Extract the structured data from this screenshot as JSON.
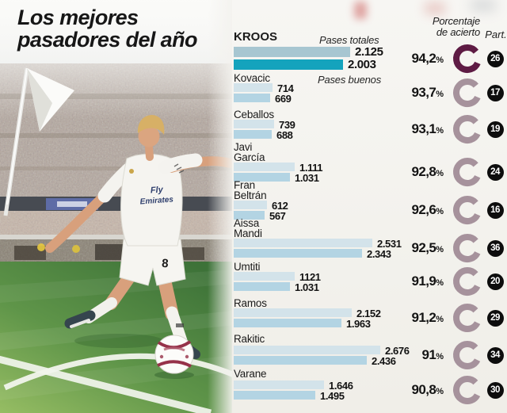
{
  "title": {
    "line1": "Los mejores",
    "line2": "pasadores del año"
  },
  "headers": {
    "accuracy_line1": "Porcentaje",
    "accuracy_line2": "de acierto",
    "participation": "Part."
  },
  "legend": {
    "total": "Pases totales",
    "good": "Pases buenos"
  },
  "photo": {
    "subject": "player-kicking-ball-in-stadium",
    "jersey_line1": "Fly",
    "jersey_line2": "Emirates",
    "shorts_number": "8"
  },
  "colors": {
    "bar_total_hero": "#a7c6d1",
    "bar_good_hero": "#14a3bd",
    "bar_total": "#d3e3ea",
    "bar_good": "#b3d4e3",
    "ring_hero": "#5e1b44",
    "ring": "#a6929c",
    "badge_bg": "#0d0d0d",
    "badge_text": "#ffffff"
  },
  "chart_data": {
    "type": "bar",
    "orientation": "horizontal",
    "title": "Los mejores pasadores del año",
    "series_labels": [
      "Pases totales",
      "Pases buenos"
    ],
    "value_axis_max": 2676,
    "grid": false,
    "legend_position": "inline-first-row",
    "players": [
      {
        "name_lines": [
          "KROOS"
        ],
        "total": 2125,
        "total_display": "2.125",
        "good": 2003,
        "good_display": "2.003",
        "accuracy_pct": 94.2,
        "accuracy_display": "94,2",
        "matches": 26,
        "highlight": true
      },
      {
        "name_lines": [
          "Kovacic"
        ],
        "total": 714,
        "total_display": "714",
        "good": 669,
        "good_display": "669",
        "accuracy_pct": 93.7,
        "accuracy_display": "93,7",
        "matches": 17,
        "highlight": false
      },
      {
        "name_lines": [
          "Ceballos"
        ],
        "total": 739,
        "total_display": "739",
        "good": 688,
        "good_display": "688",
        "accuracy_pct": 93.1,
        "accuracy_display": "93,1",
        "matches": 19,
        "highlight": false
      },
      {
        "name_lines": [
          "Javi",
          "García"
        ],
        "total": 1111,
        "total_display": "1.111",
        "good": 1031,
        "good_display": "1.031",
        "accuracy_pct": 92.8,
        "accuracy_display": "92,8",
        "matches": 24,
        "highlight": false
      },
      {
        "name_lines": [
          "Fran",
          "Beltrán"
        ],
        "total": 612,
        "total_display": "612",
        "good": 567,
        "good_display": "567",
        "accuracy_pct": 92.6,
        "accuracy_display": "92,6",
        "matches": 16,
        "highlight": false
      },
      {
        "name_lines": [
          "Aissa",
          "Mandi"
        ],
        "total": 2531,
        "total_display": "2.531",
        "good": 2343,
        "good_display": "2.343",
        "accuracy_pct": 92.5,
        "accuracy_display": "92,5",
        "matches": 36,
        "highlight": false
      },
      {
        "name_lines": [
          "Umtiti"
        ],
        "total": 1121,
        "total_display": "1121",
        "good": 1031,
        "good_display": "1.031",
        "accuracy_pct": 91.9,
        "accuracy_display": "91,9",
        "matches": 20,
        "highlight": false
      },
      {
        "name_lines": [
          "Ramos"
        ],
        "total": 2152,
        "total_display": "2.152",
        "good": 1963,
        "good_display": "1.963",
        "accuracy_pct": 91.2,
        "accuracy_display": "91,2",
        "matches": 29,
        "highlight": false
      },
      {
        "name_lines": [
          "Rakitic"
        ],
        "total": 2676,
        "total_display": "2.676",
        "good": 2436,
        "good_display": "2.436",
        "accuracy_pct": 91.0,
        "accuracy_display": "91",
        "matches": 34,
        "highlight": false
      },
      {
        "name_lines": [
          "Varane"
        ],
        "total": 1646,
        "total_display": "1.646",
        "good": 1495,
        "good_display": "1.495",
        "accuracy_pct": 90.8,
        "accuracy_display": "90,8",
        "matches": 30,
        "highlight": false
      }
    ]
  }
}
